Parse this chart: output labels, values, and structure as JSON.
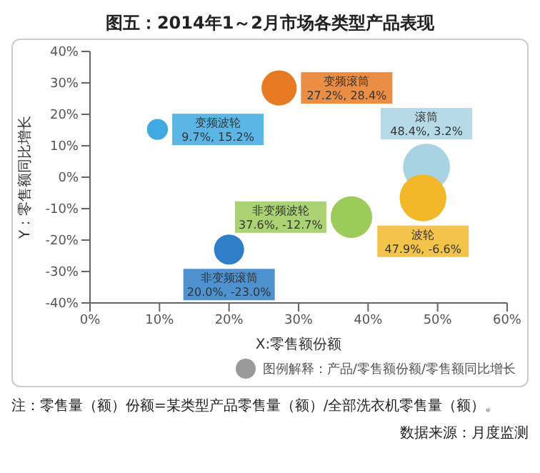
{
  "chart_data": {
    "type": "bubble",
    "title": "图五：2014年1～2月市场各类型产品表现",
    "xlabel": "X:零售额份额",
    "ylabel": "Y：零售额同比增长",
    "xlim": [
      0,
      60
    ],
    "xticks": [
      {
        "value": 0,
        "label": "0%"
      },
      {
        "value": 10,
        "label": "10%"
      },
      {
        "value": 20,
        "label": "20%"
      },
      {
        "value": 30,
        "label": "30%"
      },
      {
        "value": 40,
        "label": "40%"
      },
      {
        "value": 50,
        "label": "50%"
      },
      {
        "value": 60,
        "label": "60%"
      }
    ],
    "ylim": [
      -40,
      40
    ],
    "yticks": [
      {
        "value": -40,
        "label": "-40%"
      },
      {
        "value": -30,
        "label": "-30%"
      },
      {
        "value": -20,
        "label": "-20%"
      },
      {
        "value": -10,
        "label": "-10%"
      },
      {
        "value": 0,
        "label": "0%"
      },
      {
        "value": 10,
        "label": "10%"
      },
      {
        "value": 20,
        "label": "20%"
      },
      {
        "value": 30,
        "label": "30%"
      },
      {
        "value": 40,
        "label": "40%"
      }
    ],
    "grid": false,
    "legend": false,
    "series": [
      {
        "name": "变频波轮",
        "color": "#3fa9e0",
        "x": [
          9.7
        ],
        "values": [
          15.2
        ],
        "sizes": [
          0.2
        ],
        "value_labels": [
          "9.7%, 15.2%"
        ]
      },
      {
        "name": "变频滚筒",
        "color": "#e87a24",
        "x": [
          27.2
        ],
        "values": [
          28.4
        ],
        "sizes": [
          0.56
        ],
        "value_labels": [
          "27.2%, 28.4%"
        ]
      },
      {
        "name": "滚筒",
        "color": "#a9d3e3",
        "x": [
          48.4
        ],
        "values": [
          3.2
        ],
        "sizes": [
          1
        ],
        "value_labels": [
          "48.4%, 3.2%"
        ]
      },
      {
        "name": "非变频滚筒",
        "color": "#2f7fc8",
        "x": [
          20.0
        ],
        "values": [
          -23.0
        ],
        "sizes": [
          0.41
        ],
        "value_labels": [
          "20.0%, -23.0%"
        ]
      },
      {
        "name": "非变频波轮",
        "color": "#9ccb5a",
        "x": [
          37.6
        ],
        "values": [
          -12.7
        ],
        "sizes": [
          0.78
        ],
        "value_labels": [
          "37.6%, -12.7%"
        ]
      },
      {
        "name": "波轮",
        "color": "#f2b82a",
        "x": [
          47.9
        ],
        "values": [
          -6.6
        ],
        "sizes": [
          0.99
        ],
        "value_labels": [
          "47.9%, -6.6%"
        ]
      }
    ],
    "annotations": [
      "图例解释：",
      "产品/零售额份额/零售额同比增长",
      "注：零售量（额）份额=某类型产品零售量（额）/全部洗衣机零售量（额）。",
      "数据来源：月度监测"
    ]
  }
}
